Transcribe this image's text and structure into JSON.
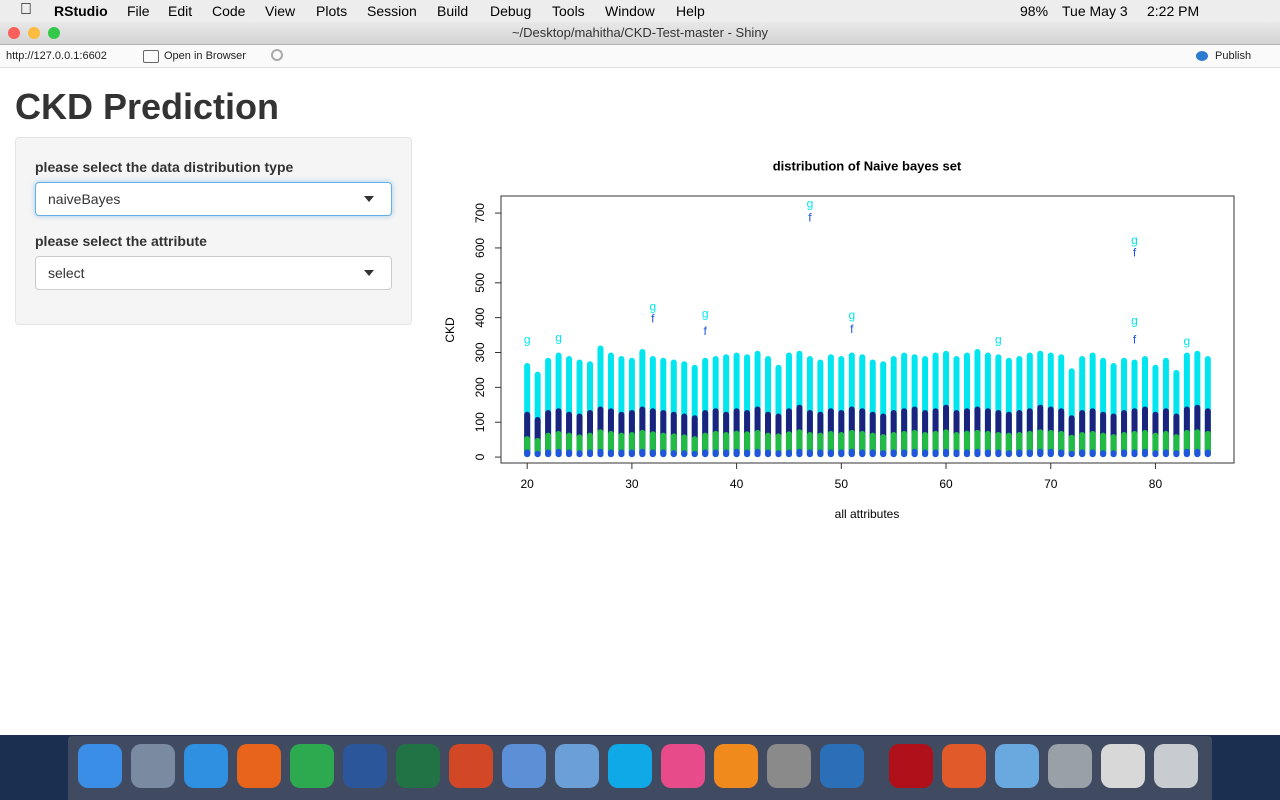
{
  "menubar": {
    "items": [
      "RStudio",
      "File",
      "Edit",
      "Code",
      "View",
      "Plots",
      "Session",
      "Build",
      "Debug",
      "Tools",
      "Window",
      "Help"
    ],
    "battery": "98%",
    "date": "Tue May 3",
    "time": "2:22 PM"
  },
  "window": {
    "title": "~/Desktop/mahitha/CKD-Test-master - Shiny"
  },
  "toolbar": {
    "url": "http://127.0.0.1:6602",
    "open_in_browser": "Open in Browser",
    "publish": "Publish"
  },
  "app": {
    "title": "CKD Prediction",
    "inputs": [
      {
        "label": "please select the data distribution type",
        "value": "naiveBayes"
      },
      {
        "label": "please select the attribute",
        "value": "select"
      }
    ]
  },
  "chart_data": {
    "type": "scatter",
    "title": "distribution of Naive bayes set",
    "xlabel": "all attributes",
    "ylabel": "CKD",
    "xlim": [
      17.5,
      87.5
    ],
    "ylim": [
      -17,
      749
    ],
    "xticks": [
      20,
      30,
      40,
      50,
      60,
      70,
      80
    ],
    "yticks": [
      0,
      100,
      200,
      300,
      400,
      500,
      600,
      700
    ],
    "x": [
      20,
      21,
      22,
      23,
      24,
      25,
      26,
      27,
      28,
      29,
      30,
      31,
      32,
      33,
      34,
      35,
      36,
      37,
      38,
      39,
      40,
      41,
      42,
      43,
      44,
      45,
      46,
      47,
      48,
      49,
      50,
      51,
      52,
      53,
      54,
      55,
      56,
      57,
      58,
      59,
      60,
      61,
      62,
      63,
      64,
      65,
      66,
      67,
      68,
      69,
      70,
      71,
      72,
      73,
      74,
      75,
      76,
      77,
      78,
      79,
      80,
      81,
      82,
      83,
      84,
      85
    ],
    "series": [
      {
        "color": "#2255dd",
        "values": [
          22,
          18,
          22,
          24,
          22,
          20,
          22,
          24,
          22,
          22,
          22,
          24,
          22,
          22,
          20,
          20,
          18,
          22,
          22,
          22,
          24,
          22,
          24,
          22,
          20,
          22,
          24,
          22,
          22,
          22,
          22,
          24,
          22,
          22,
          20,
          22,
          22,
          24,
          22,
          22,
          24,
          22,
          22,
          24,
          22,
          22,
          20,
          22,
          22,
          24,
          24,
          22,
          18,
          22,
          22,
          20,
          20,
          22,
          22,
          24,
          20,
          22,
          20,
          24,
          24,
          22
        ]
      },
      {
        "color": "#22bb44",
        "values": [
          60,
          55,
          70,
          75,
          70,
          65,
          70,
          80,
          75,
          70,
          72,
          78,
          74,
          70,
          68,
          65,
          60,
          70,
          75,
          72,
          76,
          74,
          78,
          70,
          68,
          74,
          80,
          72,
          70,
          75,
          72,
          78,
          75,
          70,
          66,
          72,
          75,
          78,
          72,
          75,
          80,
          72,
          76,
          78,
          75,
          72,
          70,
          72,
          75,
          80,
          78,
          75,
          64,
          72,
          75,
          70,
          66,
          72,
          75,
          78,
          70,
          75,
          66,
          78,
          80,
          75
        ]
      },
      {
        "color": "#1a237e",
        "values": [
          130,
          115,
          135,
          140,
          130,
          125,
          135,
          145,
          140,
          130,
          135,
          145,
          140,
          135,
          130,
          125,
          120,
          135,
          140,
          130,
          140,
          135,
          145,
          130,
          125,
          140,
          150,
          135,
          130,
          140,
          135,
          145,
          140,
          130,
          125,
          135,
          140,
          145,
          135,
          140,
          150,
          135,
          140,
          145,
          140,
          135,
          130,
          135,
          140,
          150,
          145,
          140,
          120,
          135,
          140,
          130,
          125,
          135,
          140,
          145,
          130,
          140,
          125,
          145,
          150,
          140
        ]
      },
      {
        "color": "#00e5ee",
        "values": [
          270,
          245,
          285,
          300,
          290,
          280,
          275,
          320,
          300,
          290,
          285,
          310,
          290,
          285,
          280,
          275,
          265,
          285,
          290,
          295,
          300,
          295,
          305,
          290,
          265,
          300,
          305,
          290,
          280,
          295,
          290,
          300,
          295,
          280,
          275,
          290,
          300,
          295,
          290,
          300,
          305,
          290,
          300,
          310,
          300,
          295,
          285,
          290,
          300,
          305,
          300,
          295,
          255,
          290,
          300,
          285,
          270,
          285,
          280,
          290,
          265,
          285,
          250,
          300,
          305,
          290
        ]
      }
    ],
    "annotations": [
      {
        "text": "g",
        "x": 47,
        "y": 725,
        "color": "#00e5ee"
      },
      {
        "text": "f",
        "x": 47,
        "y": 685,
        "color": "#2255dd"
      },
      {
        "text": "g",
        "x": 78,
        "y": 620,
        "color": "#00e5ee"
      },
      {
        "text": "f",
        "x": 78,
        "y": 585,
        "color": "#2255dd"
      },
      {
        "text": "g",
        "x": 78,
        "y": 390,
        "color": "#00e5ee"
      },
      {
        "text": "f",
        "x": 78,
        "y": 335,
        "color": "#2255dd"
      },
      {
        "text": "g",
        "x": 32,
        "y": 430,
        "color": "#00e5ee"
      },
      {
        "text": "f",
        "x": 32,
        "y": 395,
        "color": "#2255dd"
      },
      {
        "text": "g",
        "x": 37,
        "y": 410,
        "color": "#00e5ee"
      },
      {
        "text": "f",
        "x": 37,
        "y": 360,
        "color": "#2255dd"
      },
      {
        "text": "g",
        "x": 51,
        "y": 405,
        "color": "#00e5ee"
      },
      {
        "text": "f",
        "x": 51,
        "y": 365,
        "color": "#2255dd"
      },
      {
        "text": "g",
        "x": 20,
        "y": 335,
        "color": "#00e5ee"
      },
      {
        "text": "g",
        "x": 23,
        "y": 340,
        "color": "#00e5ee"
      },
      {
        "text": "g",
        "x": 65,
        "y": 335,
        "color": "#00e5ee"
      },
      {
        "text": "g",
        "x": 83,
        "y": 330,
        "color": "#00e5ee"
      }
    ]
  }
}
